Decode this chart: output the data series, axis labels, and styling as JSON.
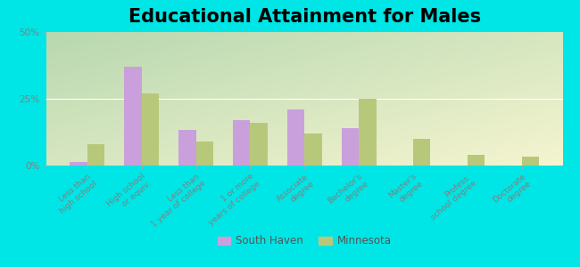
{
  "title": "Educational Attainment for Males",
  "categories": [
    "Less than\nhigh school",
    "High school\nor equiv.",
    "Less than\n1 year of college",
    "1 or more\nyears of college",
    "Associate\ndegree",
    "Bachelor's\ndegree",
    "Master's\ndegree",
    "Profess.\nschool degree",
    "Doctorate\ndegree"
  ],
  "south_haven": [
    1.5,
    37.0,
    13.5,
    17.0,
    21.0,
    14.0,
    0.0,
    0.0,
    0.0
  ],
  "minnesota": [
    8.0,
    27.0,
    9.0,
    16.0,
    12.0,
    25.0,
    10.0,
    4.0,
    3.5
  ],
  "south_haven_color": "#c9a0dc",
  "minnesota_color": "#b8c87a",
  "background_fig": "#00e5e5",
  "gradient_top_left": "#b8d8b0",
  "gradient_bottom_right": "#f5f5d0",
  "ylim": [
    0,
    50
  ],
  "yticks": [
    0,
    25,
    50
  ],
  "ytick_labels": [
    "0%",
    "25%",
    "50%"
  ],
  "grid_color": "#e0e8d0",
  "title_fontsize": 15,
  "label_fontsize": 6.5,
  "tick_color": "#808080",
  "legend_labels": [
    "South Haven",
    "Minnesota"
  ]
}
